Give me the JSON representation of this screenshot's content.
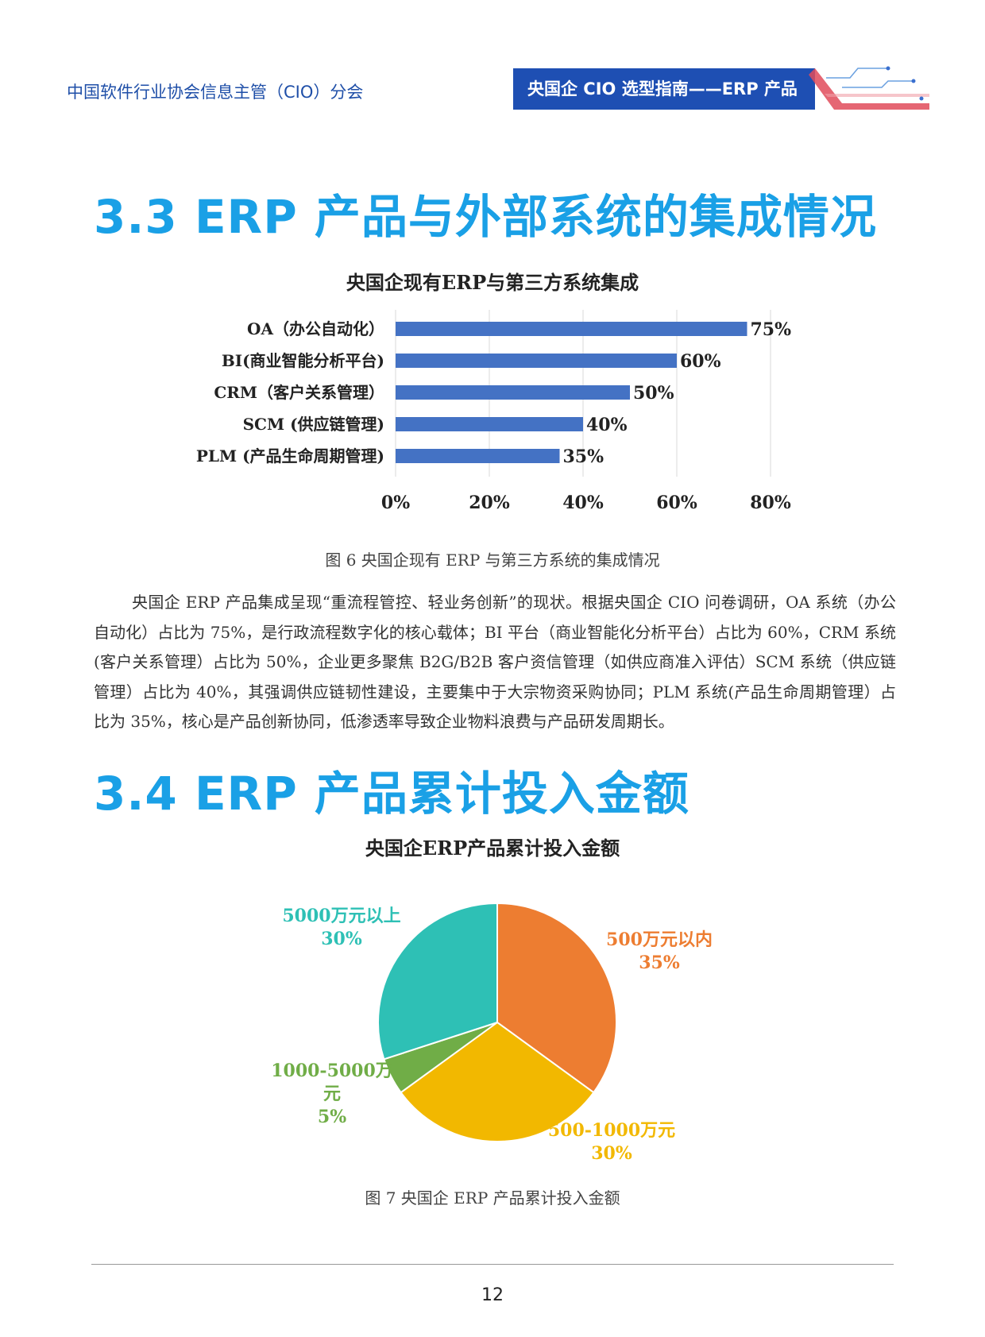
{
  "header": {
    "org": "中国软件行业协会信息主管（CIO）分会",
    "tag": "央国企 CIO 选型指南——ERP 产品"
  },
  "section_33": {
    "title": "3.3 ERP 产品与外部系统的集成情况"
  },
  "section_34": {
    "title": "3.4 ERP 产品累计投入金额"
  },
  "fig6": {
    "caption": "图 6 央国企现有 ERP 与第三方系统的集成情况"
  },
  "fig7": {
    "caption": "图 7 央国企 ERP 产品累计投入金额"
  },
  "paragraph": "央国企 ERP 产品集成呈现“重流程管控、轻业务创新”的现状。根据央国企 CIO 问卷调研，OA 系统（办公自动化）占比为 75%，是行政流程数字化的核心载体；BI 平台（商业智能化分析平台）占比为 60%，CRM 系统(客户关系管理）占比为 50%，企业更多聚焦 B2G/B2B 客户资信管理（如供应商准入评估）SCM 系统（供应链管理）占比为 40%，其强调供应链韧性建设，主要集中于大宗物资采购协同；PLM 系统(产品生命周期管理）占比为 35%，核心是产品创新协同，低渗透率导致企业物料浪费与产品研发周期长。",
  "page_number": "12",
  "colors": {
    "accent_blue": "#1aa0e6",
    "header_blue": "#1e4fb3",
    "bar_blue": "#4472c4",
    "pie_orange": "#ed7d31",
    "pie_yellow": "#f2b800",
    "pie_green": "#70ad47",
    "pie_teal": "#2ec0b5"
  },
  "chart_data": [
    {
      "type": "bar",
      "orientation": "horizontal",
      "title": "央国企现有ERP与第三方系统集成",
      "categories": [
        "OA（办公自动化）",
        "BI(商业智能分析平台)",
        "CRM（客户关系管理）",
        "SCM (供应链管理)",
        "PLM (产品生命周期管理)"
      ],
      "values": [
        75,
        60,
        50,
        40,
        35
      ],
      "data_labels": [
        "75%",
        "60%",
        "50%",
        "40%",
        "35%"
      ],
      "xlim": [
        0,
        80
      ],
      "xticks": [
        "0%",
        "20%",
        "40%",
        "60%",
        "80%"
      ],
      "grid": "vertical",
      "color": "#4472c4"
    },
    {
      "type": "pie",
      "title": "央国企ERP产品累计投入金额",
      "slices": [
        {
          "label": "500万元以内",
          "value": 35,
          "pct": "35%",
          "color": "#ed7d31"
        },
        {
          "label": "500-1000万元",
          "value": 30,
          "pct": "30%",
          "color": "#f2b800"
        },
        {
          "label": "1000-5000万元",
          "value": 5,
          "pct": "5%",
          "color": "#70ad47"
        },
        {
          "label": "5000万元以上",
          "value": 30,
          "pct": "30%",
          "color": "#2ec0b5"
        }
      ]
    }
  ]
}
